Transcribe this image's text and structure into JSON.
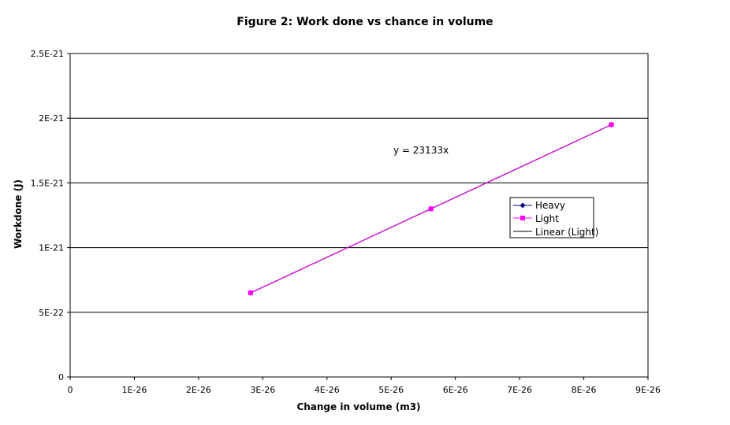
{
  "chart_data": {
    "type": "scatter",
    "title": "Figure 2: Work done vs chance in volume",
    "xlabel": "Change in volume (m3)",
    "ylabel": "Workdone (J)",
    "xlim": [
      0,
      9e-26
    ],
    "ylim": [
      0,
      2.5e-21
    ],
    "x_ticks": [
      0,
      1e-26,
      2e-26,
      3e-26,
      4e-26,
      5e-26,
      6e-26,
      7e-26,
      8e-26,
      9e-26
    ],
    "x_tick_labels": [
      "0",
      "1E-26",
      "2E-26",
      "3E-26",
      "4E-26",
      "5E-26",
      "6E-26",
      "7E-26",
      "8E-26",
      "9E-26"
    ],
    "y_ticks": [
      0,
      5e-22,
      1e-21,
      1.5e-21,
      2e-21,
      2.5e-21
    ],
    "y_tick_labels": [
      "0",
      "5E-22",
      "1E-21",
      "1.5E-21",
      "2E-21",
      "2.5E-21"
    ],
    "grid": "horizontal",
    "legend_position": "right",
    "series": [
      {
        "name": "Heavy",
        "color": "#000080",
        "marker": "diamond",
        "x": [
          2.81e-26,
          5.62e-26,
          8.43e-26
        ],
        "y": [
          6.5e-22,
          1.3e-21,
          1.95e-21
        ]
      },
      {
        "name": "Light",
        "color": "#ff00ff",
        "marker": "square",
        "x": [
          2.81e-26,
          5.62e-26,
          8.43e-26
        ],
        "y": [
          6.5e-22,
          1.3e-21,
          1.95e-21
        ]
      }
    ],
    "trendline": {
      "name": "Linear (Light)",
      "color": "#000000",
      "slope": 23133,
      "equation": "y = 23133x",
      "x_range": [
        2.81e-26,
        8.43e-26
      ]
    }
  }
}
